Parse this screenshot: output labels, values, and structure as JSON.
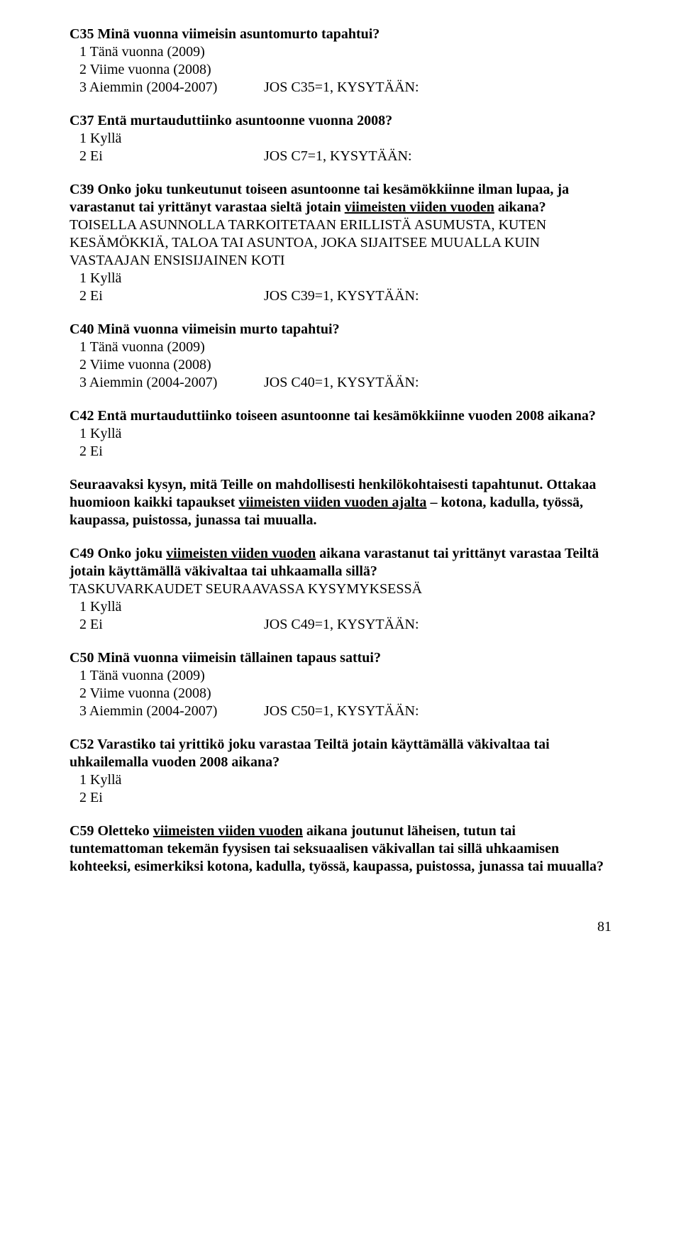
{
  "c35": {
    "heading": "C35 Minä vuonna viimeisin asuntomurto tapahtui?",
    "opt1": "1 Tänä vuonna (2009)",
    "opt2": "2 Viime vuonna (2008)",
    "opt3_left": "3 Aiemmin (2004-2007)",
    "opt3_right": "JOS C35=1, KYSYTÄÄN:"
  },
  "c37": {
    "heading": "C37 Entä murtauduttiinko asuntoonne vuonna 2008?",
    "opt1": "1 Kyllä",
    "opt2_left": "2 Ei",
    "opt2_right": "JOS C7=1, KYSYTÄÄN:"
  },
  "c39": {
    "heading_pre": "C39 Onko joku tunkeutunut toiseen asuntoonne tai kesämökkiinne ilman lupaa, ja varastanut tai yrittänyt varastaa sieltä jotain ",
    "heading_ul": "viimeisten viiden vuoden",
    "heading_post": " aikana?",
    "note": "TOISELLA ASUNNOLLA TARKOITETAAN ERILLISTÄ ASUMUSTA, KUTEN KESÄMÖKKIÄ, TALOA TAI ASUNTOA, JOKA SIJAITSEE MUUALLA KUIN VASTAAJAN ENSISIJAINEN KOTI",
    "opt1": "1 Kyllä",
    "opt2_left": "2 Ei",
    "opt2_right": "JOS C39=1, KYSYTÄÄN:"
  },
  "c40": {
    "heading": "C40 Minä vuonna viimeisin murto tapahtui?",
    "opt1": "1 Tänä vuonna (2009)",
    "opt2": "2 Viime vuonna (2008)",
    "opt3_left": "3 Aiemmin (2004-2007)",
    "opt3_right": "JOS C40=1, KYSYTÄÄN:"
  },
  "c42": {
    "heading": "C42 Entä murtauduttiinko toiseen asuntoonne tai kesämökkiinne vuoden 2008 aikana?",
    "opt1": "1 Kyllä",
    "opt2": "2 Ei"
  },
  "intro": {
    "l1_pre": "Seuraavaksi kysyn, mitä Teille on mahdollisesti henkilökohtaisesti tapahtunut. Ottakaa huomioon kaikki tapaukset ",
    "l1_ul": "viimeisten viiden vuoden ajalta",
    "l1_post": " – kotona, kadulla, työssä, kaupassa, puistossa, junassa tai muualla."
  },
  "c49": {
    "heading_pre": "C49 Onko joku ",
    "heading_ul": "viimeisten viiden vuoden",
    "heading_post": " aikana varastanut tai yrittänyt varastaa Teiltä jotain käyttämällä väkivaltaa tai uhkaamalla sillä?",
    "note": "TASKUVARKAUDET SEURAAVASSA KYSYMYKSESSÄ",
    "opt1": "1 Kyllä",
    "opt2_left": "2 Ei",
    "opt2_right": "JOS C49=1, KYSYTÄÄN:"
  },
  "c50": {
    "heading": "C50 Minä vuonna viimeisin tällainen tapaus sattui?",
    "opt1": "1 Tänä vuonna (2009)",
    "opt2": "2 Viime vuonna (2008)",
    "opt3_left": "3 Aiemmin (2004-2007)",
    "opt3_right": "JOS C50=1, KYSYTÄÄN:"
  },
  "c52": {
    "heading": "C52 Varastiko tai yrittikö joku varastaa Teiltä jotain käyttämällä väkivaltaa tai uhkailemalla vuoden 2008 aikana?",
    "opt1": "1 Kyllä",
    "opt2": "2 Ei"
  },
  "c59": {
    "heading_pre": "C59 Oletteko ",
    "heading_ul": "viimeisten viiden vuoden",
    "heading_post": " aikana joutunut läheisen, tutun tai tuntemattoman tekemän fyysisen tai seksuaalisen väkivallan tai sillä uhkaamisen kohteeksi, esimerkiksi kotona, kadulla, työssä, kaupassa, puistossa, junassa tai muualla?"
  },
  "page": "81"
}
